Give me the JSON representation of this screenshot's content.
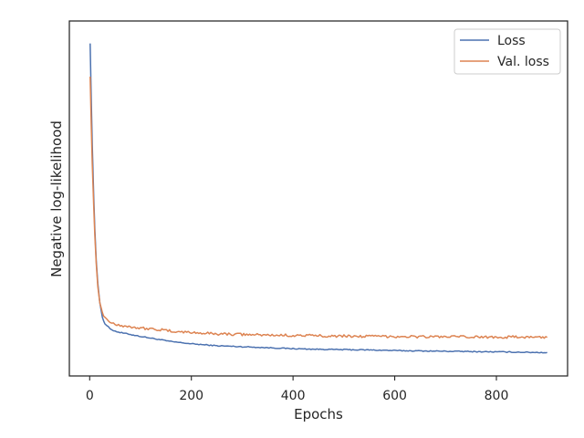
{
  "chart_data": {
    "type": "line",
    "title": "",
    "xlabel": "Epochs",
    "ylabel": "Negative log-likelihood",
    "xlim": [
      -40,
      940
    ],
    "ylim": [
      0,
      1
    ],
    "xticks": [
      0,
      200,
      400,
      600,
      800
    ],
    "xtick_labels": [
      "0",
      "200",
      "400",
      "600",
      "800"
    ],
    "yticks_visible": false,
    "grid": false,
    "legend_position": "upper-right",
    "series": [
      {
        "name": "Loss",
        "color": "#4c72b0",
        "x": [
          1,
          3,
          5,
          8,
          10,
          13,
          16,
          20,
          25,
          30,
          40,
          50,
          60,
          80,
          100,
          130,
          160,
          200,
          250,
          300,
          350,
          400,
          450,
          500,
          550,
          600,
          650,
          700,
          750,
          800,
          850,
          900
        ],
        "y": [
          0.973,
          0.8,
          0.66,
          0.5,
          0.4,
          0.3,
          0.23,
          0.17,
          0.125,
          0.105,
          0.09,
          0.082,
          0.078,
          0.072,
          0.066,
          0.058,
          0.05,
          0.043,
          0.037,
          0.034,
          0.031,
          0.028,
          0.026,
          0.025,
          0.024,
          0.022,
          0.021,
          0.02,
          0.019,
          0.018,
          0.017,
          0.016
        ]
      },
      {
        "name": "Val. loss",
        "color": "#dd8452",
        "x": [
          1,
          3,
          5,
          8,
          10,
          13,
          16,
          20,
          25,
          30,
          40,
          50,
          60,
          80,
          100,
          130,
          160,
          200,
          250,
          300,
          350,
          400,
          450,
          500,
          550,
          600,
          650,
          700,
          750,
          800,
          850,
          900
        ],
        "y": [
          0.87,
          0.72,
          0.6,
          0.47,
          0.38,
          0.29,
          0.22,
          0.17,
          0.14,
          0.125,
          0.11,
          0.105,
          0.1,
          0.096,
          0.092,
          0.088,
          0.082,
          0.078,
          0.074,
          0.072,
          0.07,
          0.069,
          0.068,
          0.067,
          0.066,
          0.066,
          0.065,
          0.065,
          0.064,
          0.064,
          0.064,
          0.063
        ]
      }
    ]
  }
}
